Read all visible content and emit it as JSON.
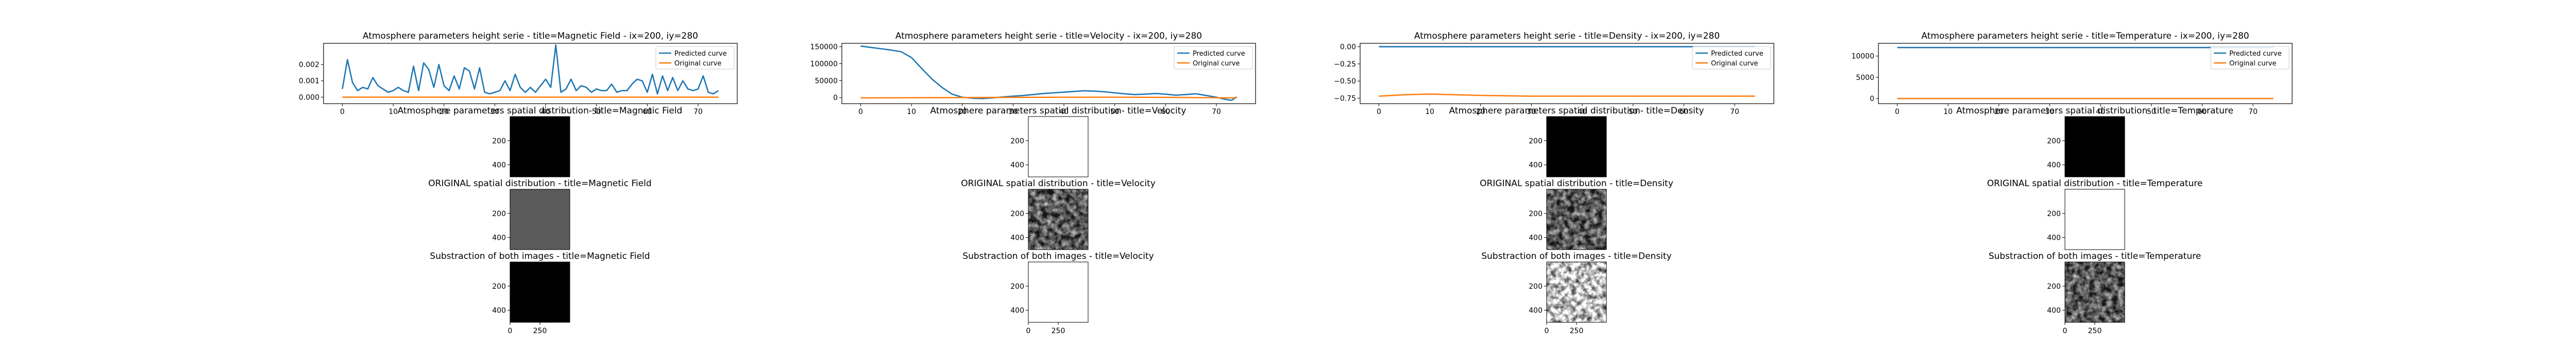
{
  "figure": {
    "columns": [
      {
        "variable": "Magnetic Field",
        "line_title": "Atmosphere parameters height serie - title=Magnetic Field - ix=200, iy=280",
        "img_titles": [
          "Atmosphere parameters spatial distribution- title=Magnetic Field",
          "ORIGINAL spatial distribution - title=Magnetic Field",
          "Substraction of both images - title=Magnetic Field"
        ],
        "img_styles": [
          "dark",
          "uniform",
          "dark"
        ]
      },
      {
        "variable": "Velocity",
        "line_title": "Atmosphere parameters height serie - title=Velocity - ix=200, iy=280",
        "img_titles": [
          "Atmosphere parameters spatial distribution- title=Velocity",
          "ORIGINAL spatial distribution - title=Velocity",
          "Substraction of both images - title=Velocity"
        ],
        "img_styles": [
          "binary",
          "gray",
          "binary"
        ]
      },
      {
        "variable": "Density",
        "line_title": "Atmosphere parameters height serie - title=Density - ix=200, iy=280",
        "img_titles": [
          "Atmosphere parameters spatial distribution- title=Density",
          "ORIGINAL spatial distribution - title=Density",
          "Substraction of both images - title=Density"
        ],
        "img_styles": [
          "black",
          "gray",
          "light"
        ]
      },
      {
        "variable": "Temperature",
        "line_title": "Atmosphere parameters height serie - title=Temperature - ix=200, iy=280",
        "img_titles": [
          "Atmosphere parameters spatial distribution- title=Temperature",
          "ORIGINAL spatial distribution - title=Temperature",
          "Substraction of both images - title=Temperature"
        ],
        "img_styles": [
          "dark",
          "binary",
          "gray"
        ]
      }
    ],
    "legend_labels": [
      "Predicted curve",
      "Original curve"
    ],
    "colors": {
      "predicted": "#1f77b4",
      "original": "#ff7f0e"
    },
    "image_y_ticks": [
      "200",
      "400"
    ],
    "image_x_ticks": [
      "0",
      "250"
    ]
  },
  "chart_data": [
    {
      "type": "line",
      "title": "Atmosphere parameters height serie - title=Magnetic Field - ix=200, iy=280",
      "xlabel": "",
      "ylabel": "",
      "xlim": [
        -3.7,
        77.7
      ],
      "ylim": [
        -0.0004,
        0.0033
      ],
      "xticks": [
        0,
        10,
        20,
        30,
        40,
        50,
        60,
        70
      ],
      "yticks": [
        0.0,
        0.001,
        0.002
      ],
      "ytick_labels": [
        "0.000",
        "0.001",
        "0.002"
      ],
      "legend": "top-right",
      "series": [
        {
          "name": "Predicted curve",
          "x": [
            0,
            1,
            2,
            3,
            4,
            5,
            6,
            7,
            8,
            9,
            10,
            11,
            12,
            13,
            14,
            15,
            16,
            17,
            18,
            19,
            20,
            21,
            22,
            23,
            24,
            25,
            26,
            27,
            28,
            29,
            30,
            31,
            32,
            33,
            34,
            35,
            36,
            37,
            38,
            39,
            40,
            41,
            42,
            43,
            44,
            45,
            46,
            47,
            48,
            49,
            50,
            51,
            52,
            53,
            54,
            55,
            56,
            57,
            58,
            59,
            60,
            61,
            62,
            63,
            64,
            65,
            66,
            67,
            68,
            69,
            70,
            71,
            72,
            73,
            74
          ],
          "y": [
            0.0005,
            0.0023,
            0.0009,
            0.0004,
            0.0006,
            0.0005,
            0.0012,
            0.0007,
            0.0005,
            0.0003,
            0.0004,
            0.0006,
            0.0004,
            0.0003,
            0.0019,
            0.0004,
            0.0021,
            0.0017,
            0.0006,
            0.002,
            0.0007,
            0.0004,
            0.0013,
            0.0005,
            0.0018,
            0.0016,
            0.0005,
            0.0018,
            0.0003,
            0.0002,
            0.0003,
            0.0004,
            0.001,
            0.0004,
            0.0014,
            0.0006,
            0.0003,
            0.0006,
            0.0003,
            0.0007,
            0.0011,
            0.0006,
            0.0032,
            0.0003,
            0.0005,
            0.0011,
            0.0004,
            0.0007,
            0.0006,
            0.0003,
            0.0005,
            0.0004,
            0.0004,
            0.0008,
            0.0003,
            0.0004,
            0.0004,
            0.0008,
            0.0011,
            0.001,
            0.0003,
            0.0014,
            0.0002,
            0.0013,
            0.0004,
            0.0012,
            0.0004,
            0.001,
            0.0005,
            0.0004,
            0.0005,
            0.0013,
            0.0003,
            0.0002,
            0.0004
          ]
        },
        {
          "name": "Original curve",
          "x": [
            0,
            74
          ],
          "y": [
            0.0,
            0.0
          ]
        }
      ]
    },
    {
      "type": "line",
      "title": "Atmosphere parameters height serie - title=Velocity - ix=200, iy=280",
      "xlabel": "",
      "ylabel": "",
      "xlim": [
        -3.7,
        77.7
      ],
      "ylim": [
        -18000,
        160000
      ],
      "xticks": [
        0,
        10,
        20,
        30,
        40,
        50,
        60,
        70
      ],
      "yticks": [
        0,
        50000,
        100000,
        150000
      ],
      "ytick_labels": [
        "0",
        "50000",
        "100000",
        "150000"
      ],
      "legend": "top-right",
      "series": [
        {
          "name": "Predicted curve",
          "x": [
            0,
            2,
            4,
            6,
            8,
            10,
            12,
            14,
            16,
            18,
            20,
            22,
            24,
            26,
            28,
            30,
            32,
            34,
            36,
            38,
            40,
            42,
            44,
            46,
            48,
            50,
            52,
            54,
            56,
            58,
            60,
            62,
            64,
            66,
            68,
            70,
            72,
            73,
            74
          ],
          "y": [
            152000,
            148000,
            144000,
            140000,
            135000,
            118000,
            86000,
            55000,
            30000,
            10000,
            1000,
            -2000,
            -3000,
            -1000,
            2000,
            4000,
            6000,
            9000,
            12000,
            14000,
            16000,
            18000,
            20000,
            19000,
            17000,
            14000,
            11000,
            9000,
            10000,
            12000,
            10000,
            7000,
            9000,
            11000,
            6000,
            1000,
            -6000,
            -8000,
            2000
          ]
        },
        {
          "name": "Original curve",
          "x": [
            0,
            10,
            20,
            30,
            40,
            50,
            60,
            70,
            74
          ],
          "y": [
            -1000,
            -500,
            0,
            500,
            800,
            1000,
            500,
            -500,
            -1000
          ]
        }
      ]
    },
    {
      "type": "line",
      "title": "Atmosphere parameters height serie - title=Density - ix=200, iy=280",
      "xlabel": "",
      "ylabel": "",
      "xlim": [
        -3.7,
        77.7
      ],
      "ylim": [
        -0.83,
        0.05
      ],
      "xticks": [
        0,
        10,
        20,
        30,
        40,
        50,
        60,
        70
      ],
      "yticks": [
        0.0,
        -0.25,
        -0.5,
        -0.75
      ],
      "ytick_labels": [
        "0.00",
        "−0.25",
        "−0.50",
        "−0.75"
      ],
      "legend": "top-right",
      "series": [
        {
          "name": "Predicted curve",
          "x": [
            0,
            74
          ],
          "y": [
            0.0,
            0.0
          ]
        },
        {
          "name": "Original curve",
          "x": [
            0,
            5,
            10,
            15,
            20,
            30,
            40,
            50,
            60,
            70,
            74
          ],
          "y": [
            -0.72,
            -0.7,
            -0.69,
            -0.7,
            -0.71,
            -0.72,
            -0.72,
            -0.72,
            -0.72,
            -0.72,
            -0.72
          ]
        }
      ]
    },
    {
      "type": "line",
      "title": "Atmosphere parameters height serie - title=Temperature - ix=200, iy=280",
      "xlabel": "",
      "ylabel": "",
      "xlim": [
        -3.7,
        77.7
      ],
      "ylim": [
        -1200,
        13000
      ],
      "xticks": [
        0,
        10,
        20,
        30,
        40,
        50,
        60,
        70
      ],
      "yticks": [
        0,
        5000,
        10000
      ],
      "ytick_labels": [
        "0",
        "5000",
        "10000"
      ],
      "legend": "top-right",
      "series": [
        {
          "name": "Predicted curve",
          "x": [
            0,
            74
          ],
          "y": [
            12000,
            12000
          ]
        },
        {
          "name": "Original curve",
          "x": [
            0,
            74
          ],
          "y": [
            0,
            0
          ]
        }
      ]
    }
  ]
}
